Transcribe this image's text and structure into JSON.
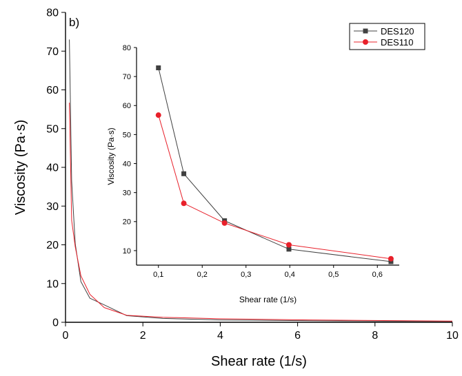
{
  "panel_label": "b)",
  "chart_data": [
    {
      "type": "line",
      "xlabel": "Shear rate (1/s)",
      "ylabel": "Viscosity (Pa·s)",
      "xlim": [
        0,
        10
      ],
      "ylim": [
        0,
        80
      ],
      "xticks": [
        0,
        2,
        4,
        6,
        8,
        10
      ],
      "xtick_labels": [
        "0",
        "2",
        "4",
        "6",
        "8",
        "10"
      ],
      "yticks": [
        0,
        10,
        20,
        30,
        40,
        50,
        60,
        70,
        80
      ],
      "ytick_labels": [
        "0",
        "10",
        "20",
        "30",
        "40",
        "50",
        "60",
        "70",
        "80"
      ],
      "grid": false,
      "series": [
        {
          "name": "DES120",
          "color": "#404040",
          "x": [
            0.1,
            0.158,
            0.251,
            0.398,
            0.631,
            1.0,
            1.585,
            2.512,
            3.981,
            6.31,
            10.0
          ],
          "y": [
            73.0,
            36.5,
            20.3,
            10.5,
            6.2,
            4.5,
            1.7,
            1.0,
            0.6,
            0.4,
            0.2
          ]
        },
        {
          "name": "DES110",
          "color": "#e8202a",
          "x": [
            0.1,
            0.158,
            0.251,
            0.398,
            0.631,
            1.0,
            1.585,
            2.512,
            3.981,
            6.31,
            10.0
          ],
          "y": [
            56.7,
            26.3,
            19.5,
            12.0,
            7.2,
            3.8,
            1.8,
            1.3,
            0.9,
            0.6,
            0.3
          ]
        }
      ]
    },
    {
      "type": "line",
      "inset": true,
      "xlabel": "Shear rate (1/s)",
      "ylabel": "Viscosity (Pa·s)",
      "xlim": [
        0.05,
        0.65
      ],
      "ylim": [
        5,
        80
      ],
      "xticks": [
        0.1,
        0.2,
        0.3,
        0.4,
        0.5,
        0.6
      ],
      "xtick_labels": [
        "0,1",
        "0,2",
        "0,3",
        "0,4",
        "0,5",
        "0,6"
      ],
      "yticks": [
        10,
        20,
        30,
        40,
        50,
        60,
        70,
        80
      ],
      "ytick_labels": [
        "10",
        "20",
        "30",
        "40",
        "50",
        "60",
        "70",
        "80"
      ],
      "grid": false,
      "legend": "top-right",
      "series": [
        {
          "name": "DES120",
          "color": "#404040",
          "marker": "square",
          "x": [
            0.1,
            0.158,
            0.251,
            0.398,
            0.631
          ],
          "y": [
            73.0,
            36.5,
            20.3,
            10.5,
            6.2
          ]
        },
        {
          "name": "DES110",
          "color": "#e8202a",
          "marker": "circle",
          "x": [
            0.1,
            0.158,
            0.251,
            0.398,
            0.631
          ],
          "y": [
            56.7,
            26.3,
            19.5,
            12.0,
            7.2
          ]
        }
      ]
    }
  ]
}
